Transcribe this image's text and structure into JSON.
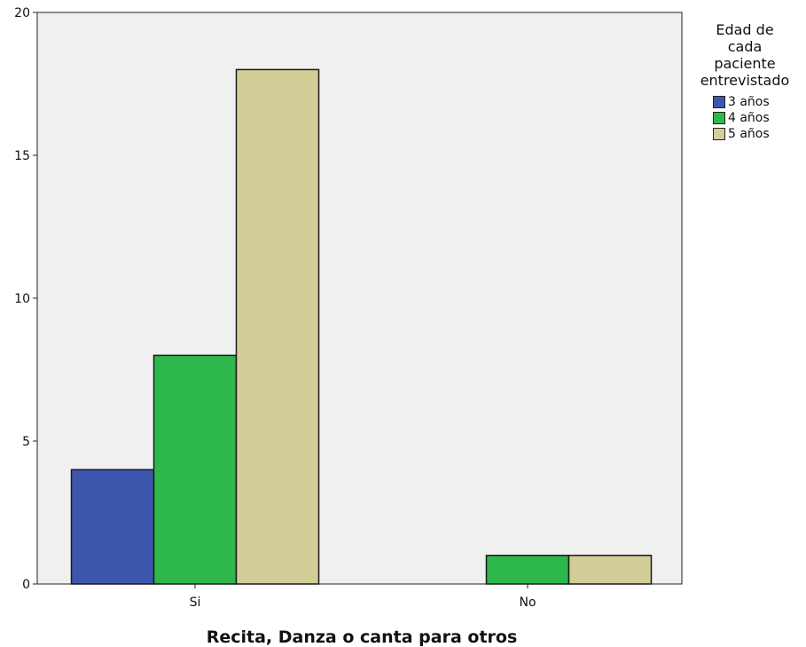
{
  "chart_data": {
    "type": "bar",
    "categories": [
      "Si",
      "No"
    ],
    "series": [
      {
        "name": "3 años",
        "values": [
          4,
          0
        ]
      },
      {
        "name": "4 años",
        "values": [
          8,
          1
        ]
      },
      {
        "name": "5 años",
        "values": [
          18,
          1
        ]
      }
    ],
    "colors": [
      "#3d56ad",
      "#2eb74a",
      "#d3ce98"
    ],
    "xlabel": "Recita, Danza o canta para otros",
    "ylabel": "",
    "ylim": [
      0,
      20
    ],
    "yticks": [
      0,
      5,
      10,
      15,
      20
    ],
    "grid": false,
    "plot_background": "#f0f0f0",
    "legend": {
      "title_lines": [
        "Edad de",
        "cada",
        "paciente",
        "entrevistado"
      ],
      "placement": "right"
    }
  }
}
